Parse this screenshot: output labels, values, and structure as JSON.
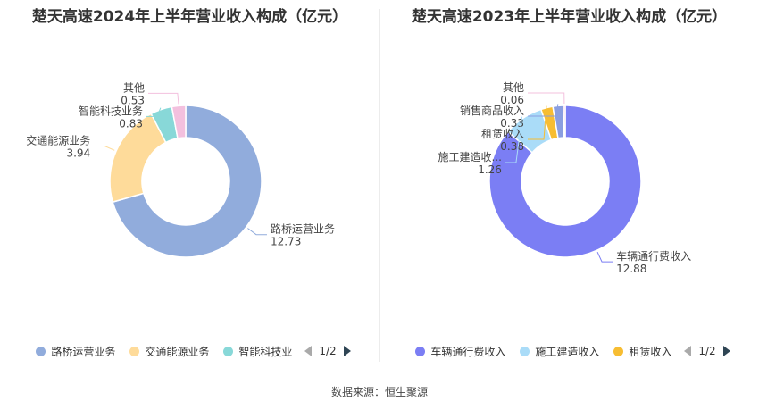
{
  "chart_data": [
    {
      "type": "pie",
      "title": "楚天高速2024年上半年营业收入构成（亿元）",
      "series": [
        {
          "name": "路桥运营业务",
          "label": "路桥运营业务",
          "value": 12.73,
          "value_label": "12.73",
          "color": "#91acdc"
        },
        {
          "name": "交通能源业务",
          "label": "交通能源业务",
          "value": 3.94,
          "value_label": "3.94",
          "color": "#fedb9a"
        },
        {
          "name": "智能科技业务",
          "label": "智能科技业务",
          "value": 0.83,
          "value_label": "0.83",
          "color": "#88d8d8"
        },
        {
          "name": "其他",
          "label": "其他",
          "value": 0.53,
          "value_label": "0.53",
          "color": "#f3c0de"
        }
      ],
      "legend": {
        "items": [
          "路桥运营业务",
          "交通能源业务",
          "智能科技业"
        ],
        "page": "1/2"
      }
    },
    {
      "type": "pie",
      "title": "楚天高速2023年上半年营业收入构成（亿元）",
      "series": [
        {
          "name": "车辆通行费收入",
          "label": "车辆通行费收入",
          "value": 12.88,
          "value_label": "12.88",
          "color": "#7b7ef4"
        },
        {
          "name": "施工建造收入",
          "label": "施工建造收...",
          "value": 1.26,
          "value_label": "1.26",
          "color": "#aadcf8"
        },
        {
          "name": "租赁收入",
          "label": "租赁收入",
          "value": 0.38,
          "value_label": "0.38",
          "color": "#f7bd32"
        },
        {
          "name": "销售商品收入",
          "label": "销售商品收入",
          "value": 0.33,
          "value_label": "0.33",
          "color": "#8a9ee0"
        },
        {
          "name": "其他",
          "label": "其他",
          "value": 0.06,
          "value_label": "0.06",
          "color": "#f3c0de"
        }
      ],
      "legend": {
        "items": [
          "车辆通行费收入",
          "施工建造收入",
          "租赁收入"
        ],
        "page": "1/2"
      }
    }
  ],
  "footer": {
    "source": "数据来源：恒生聚源"
  }
}
